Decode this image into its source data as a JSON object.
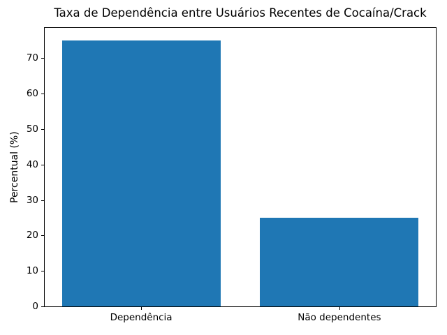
{
  "chart_data": {
    "type": "bar",
    "title": "Taxa de Dependência entre Usuários Recentes de Cocaína/Crack",
    "xlabel": "",
    "ylabel": "Percentual (%)",
    "categories": [
      "Dependência",
      "Não dependentes"
    ],
    "values": [
      75,
      25
    ],
    "yticks": [
      0,
      10,
      20,
      30,
      40,
      50,
      60,
      70
    ],
    "ylim": [
      0,
      78.75
    ],
    "xlim": [
      -0.49,
      1.49
    ],
    "bar_width": 0.8,
    "bar_color": "#1f77b4",
    "grid": false,
    "legend": null,
    "background_color": "#ffffff",
    "spine_color": "#000000"
  }
}
